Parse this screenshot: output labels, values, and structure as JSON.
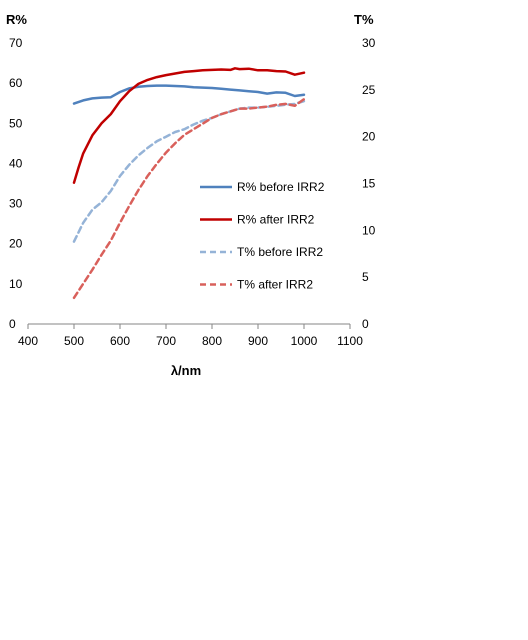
{
  "chart_data": {
    "type": "line",
    "title": "",
    "xlabel": "λ/nm",
    "ylabel_left": "R%",
    "ylabel_right": "T%",
    "xlim": [
      400,
      1100
    ],
    "ylim_left": [
      0,
      70
    ],
    "ylim_right": [
      0,
      30
    ],
    "x_ticks": [
      "400",
      "500",
      "600",
      "700",
      "800",
      "900",
      "1000",
      "1100"
    ],
    "y_left_ticks": [
      "0",
      "10",
      "20",
      "30",
      "40",
      "50",
      "60",
      "70"
    ],
    "y_right_ticks": [
      "0",
      "5",
      "10",
      "15",
      "20",
      "25",
      "30"
    ],
    "grid": false,
    "legend_position": "center-right",
    "series": [
      {
        "name": "R% before IRR2",
        "axis": "left",
        "color": "#4F81BD",
        "style": "solid",
        "x": [
          500,
          520,
          540,
          560,
          580,
          600,
          620,
          640,
          660,
          680,
          700,
          720,
          740,
          760,
          780,
          800,
          820,
          840,
          860,
          880,
          900,
          920,
          940,
          960,
          980,
          1000
        ],
        "y": [
          54.9,
          55.7,
          56.2,
          56.4,
          56.5,
          57.8,
          58.7,
          59.1,
          59.3,
          59.4,
          59.4,
          59.3,
          59.2,
          59.0,
          58.9,
          58.8,
          58.6,
          58.4,
          58.2,
          58.0,
          57.8,
          57.4,
          57.7,
          57.6,
          56.8,
          57.1
        ]
      },
      {
        "name": "R% after IRR2",
        "axis": "left",
        "color": "#C00000",
        "style": "solid",
        "x": [
          500,
          510,
          520,
          540,
          560,
          580,
          600,
          620,
          640,
          660,
          680,
          700,
          720,
          740,
          760,
          780,
          800,
          820,
          840,
          850,
          860,
          880,
          900,
          920,
          940,
          960,
          980,
          1000
        ],
        "y": [
          35.2,
          39.0,
          42.5,
          47.0,
          50.0,
          52.3,
          55.5,
          58.0,
          59.8,
          60.8,
          61.5,
          62.0,
          62.4,
          62.8,
          63.0,
          63.2,
          63.3,
          63.4,
          63.3,
          63.7,
          63.5,
          63.6,
          63.2,
          63.2,
          63.0,
          62.9,
          62.1,
          62.6
        ]
      },
      {
        "name": "T% before IRR2",
        "axis": "right",
        "color": "#95B3D7",
        "style": "dashed",
        "x": [
          500,
          520,
          540,
          560,
          580,
          600,
          620,
          640,
          660,
          680,
          700,
          720,
          740,
          760,
          780,
          800,
          820,
          840,
          860,
          880,
          900,
          920,
          940,
          960,
          980,
          1000
        ],
        "y": [
          8.8,
          10.8,
          12.2,
          13.0,
          14.2,
          15.8,
          17.0,
          18.0,
          18.8,
          19.5,
          20.0,
          20.5,
          20.8,
          21.3,
          21.7,
          22.0,
          22.4,
          22.7,
          23.0,
          23.1,
          23.1,
          23.2,
          23.3,
          23.4,
          23.5,
          23.8
        ]
      },
      {
        "name": "T% after IRR2",
        "axis": "right",
        "color": "#D9605B",
        "style": "dashed",
        "x": [
          500,
          520,
          540,
          560,
          580,
          600,
          620,
          640,
          660,
          680,
          700,
          720,
          740,
          760,
          780,
          800,
          820,
          840,
          860,
          880,
          900,
          920,
          940,
          960,
          980,
          1000
        ],
        "y": [
          2.8,
          4.3,
          5.8,
          7.4,
          8.9,
          10.8,
          12.6,
          14.3,
          15.8,
          17.1,
          18.3,
          19.3,
          20.2,
          20.8,
          21.4,
          22.0,
          22.4,
          22.7,
          23.0,
          23.0,
          23.1,
          23.2,
          23.4,
          23.5,
          23.3,
          24.0
        ]
      }
    ]
  }
}
